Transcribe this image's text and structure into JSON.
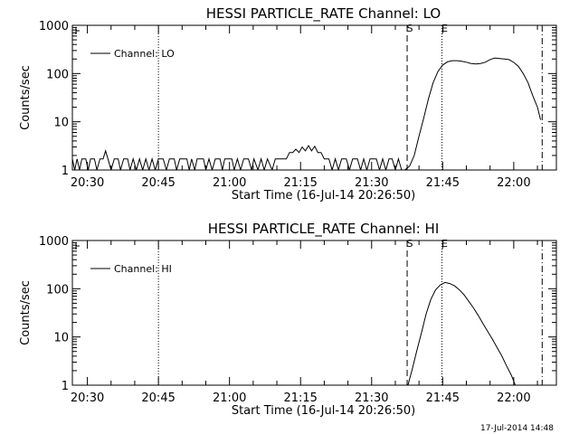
{
  "chart_data": [
    {
      "type": "line",
      "title": "HESSI PARTICLE_RATE Channel: LO",
      "xlabel": "Start Time (16-Jul-14 20:26:50)",
      "ylabel": "Counts/sec",
      "y_scale": "log",
      "ylim": [
        1,
        1000
      ],
      "y_tick_labels": [
        "1",
        "10",
        "100",
        "1000"
      ],
      "y_tick_values": [
        1,
        10,
        100,
        1000
      ],
      "xlim": [
        "20:26:50",
        "22:09:00"
      ],
      "x_tick_labels": [
        "20:30",
        "20:45",
        "21:00",
        "21:15",
        "21:30",
        "21:45",
        "22:00"
      ],
      "legend_position": "top-left",
      "series": [
        {
          "name": "Channel: LO",
          "points": [
            [
              "20:26:50",
              1.7
            ],
            [
              "20:27:20",
              1
            ],
            [
              "20:27:50",
              1.7
            ],
            [
              "20:28:20",
              1
            ],
            [
              "20:28:50",
              1.7
            ],
            [
              "20:29:40",
              1.7
            ],
            [
              "20:30:10",
              1
            ],
            [
              "20:30:40",
              1.7
            ],
            [
              "20:31:30",
              1.7
            ],
            [
              "20:32:00",
              1
            ],
            [
              "20:32:40",
              1.7
            ],
            [
              "20:33:20",
              1.7
            ],
            [
              "20:33:50",
              2.5
            ],
            [
              "20:34:20",
              1.7
            ],
            [
              "20:35:00",
              1
            ],
            [
              "20:35:40",
              1.7
            ],
            [
              "20:36:30",
              1.7
            ],
            [
              "20:37:00",
              1
            ],
            [
              "20:37:40",
              1.7
            ],
            [
              "20:38:30",
              1.7
            ],
            [
              "20:39:00",
              1
            ],
            [
              "20:39:40",
              1.7
            ],
            [
              "20:40:20",
              1
            ],
            [
              "20:41:00",
              1.7
            ],
            [
              "20:41:40",
              1
            ],
            [
              "20:42:20",
              1.7
            ],
            [
              "20:43:00",
              1
            ],
            [
              "20:43:40",
              1.7
            ],
            [
              "20:44:20",
              1
            ],
            [
              "20:45:00",
              1.7
            ],
            [
              "20:46:00",
              1.7
            ],
            [
              "20:46:40",
              1
            ],
            [
              "20:47:20",
              1.7
            ],
            [
              "20:48:20",
              1.7
            ],
            [
              "20:48:50",
              1
            ],
            [
              "20:49:30",
              1.7
            ],
            [
              "20:51:00",
              1.7
            ],
            [
              "20:51:30",
              1
            ],
            [
              "20:52:00",
              1.7
            ],
            [
              "20:52:40",
              1
            ],
            [
              "20:53:10",
              1.7
            ],
            [
              "20:54:30",
              1.7
            ],
            [
              "20:55:00",
              1
            ],
            [
              "20:55:40",
              1.7
            ],
            [
              "20:56:20",
              1
            ],
            [
              "20:57:00",
              1.7
            ],
            [
              "20:58:00",
              1.7
            ],
            [
              "20:58:30",
              1
            ],
            [
              "20:59:00",
              1.7
            ],
            [
              "21:00:30",
              1.7
            ],
            [
              "21:01:00",
              1
            ],
            [
              "21:01:40",
              1.7
            ],
            [
              "21:02:20",
              1
            ],
            [
              "21:03:00",
              1.7
            ],
            [
              "21:04:00",
              1.7
            ],
            [
              "21:04:40",
              1
            ],
            [
              "21:05:10",
              1.7
            ],
            [
              "21:06:00",
              1
            ],
            [
              "21:06:40",
              1.7
            ],
            [
              "21:07:20",
              1
            ],
            [
              "21:08:00",
              1.7
            ],
            [
              "21:09:00",
              1
            ],
            [
              "21:09:40",
              1.7
            ],
            [
              "21:12:00",
              1.7
            ],
            [
              "21:12:40",
              2.3
            ],
            [
              "21:13:20",
              2.3
            ],
            [
              "21:14:00",
              2.7
            ],
            [
              "21:14:40",
              2.3
            ],
            [
              "21:15:20",
              3.0
            ],
            [
              "21:16:00",
              2.5
            ],
            [
              "21:16:40",
              3.2
            ],
            [
              "21:17:20",
              2.5
            ],
            [
              "21:18:00",
              3.1
            ],
            [
              "21:18:40",
              2.3
            ],
            [
              "21:19:20",
              2.3
            ],
            [
              "21:20:00",
              1.7
            ],
            [
              "21:21:00",
              1.7
            ],
            [
              "21:21:40",
              1
            ],
            [
              "21:22:20",
              1.7
            ],
            [
              "21:23:00",
              1
            ],
            [
              "21:23:40",
              1.7
            ],
            [
              "21:24:40",
              1.7
            ],
            [
              "21:25:20",
              1
            ],
            [
              "21:26:00",
              1.7
            ],
            [
              "21:27:00",
              1.7
            ],
            [
              "21:27:40",
              1
            ],
            [
              "21:28:20",
              1.7
            ],
            [
              "21:29:00",
              1
            ],
            [
              "21:29:40",
              1.7
            ],
            [
              "21:31:00",
              1.7
            ],
            [
              "21:31:40",
              1
            ],
            [
              "21:32:20",
              1.7
            ],
            [
              "21:33:00",
              1
            ],
            [
              "21:33:40",
              1.7
            ],
            [
              "21:34:20",
              1.7
            ],
            [
              "21:35:00",
              1
            ],
            [
              "21:35:40",
              1.7
            ],
            [
              "21:36:20",
              1
            ],
            [
              "21:37:00",
              1
            ],
            [
              "21:38:00",
              1.2
            ],
            [
              "21:39:00",
              2.0
            ],
            [
              "21:40:00",
              5
            ],
            [
              "21:41:00",
              12
            ],
            [
              "21:42:00",
              30
            ],
            [
              "21:43:00",
              65
            ],
            [
              "21:44:00",
              110
            ],
            [
              "21:45:00",
              150
            ],
            [
              "21:46:00",
              175
            ],
            [
              "21:47:00",
              185
            ],
            [
              "21:48:00",
              185
            ],
            [
              "21:49:00",
              180
            ],
            [
              "21:50:00",
              172
            ],
            [
              "21:51:00",
              162
            ],
            [
              "21:52:00",
              158
            ],
            [
              "21:53:00",
              162
            ],
            [
              "21:54:00",
              172
            ],
            [
              "21:55:00",
              195
            ],
            [
              "21:56:00",
              210
            ],
            [
              "21:57:00",
              205
            ],
            [
              "21:58:00",
              200
            ],
            [
              "21:59:00",
              195
            ],
            [
              "22:00:00",
              170
            ],
            [
              "22:01:00",
              140
            ],
            [
              "22:02:00",
              100
            ],
            [
              "22:03:00",
              65
            ],
            [
              "22:04:00",
              35
            ],
            [
              "22:05:00",
              20
            ],
            [
              "22:05:40",
              11
            ]
          ]
        }
      ],
      "markers": [
        {
          "label": "S",
          "time": "21:37:30",
          "style": "dashed"
        },
        {
          "label": "E",
          "time": "21:44:50",
          "style": "dotted"
        },
        {
          "label": "",
          "time": "20:45:00",
          "style": "dotted"
        },
        {
          "label": "",
          "time": "22:06:00",
          "style": "dash-dot"
        }
      ]
    },
    {
      "type": "line",
      "title": "HESSI PARTICLE_RATE Channel: HI",
      "xlabel": "Start Time (16-Jul-14 20:26:50)",
      "ylabel": "Counts/sec",
      "y_scale": "log",
      "ylim": [
        1,
        1000
      ],
      "y_tick_labels": [
        "1",
        "10",
        "100",
        "1000"
      ],
      "y_tick_values": [
        1,
        10,
        100,
        1000
      ],
      "xlim": [
        "20:26:50",
        "22:09:00"
      ],
      "x_tick_labels": [
        "20:30",
        "20:45",
        "21:00",
        "21:15",
        "21:30",
        "21:45",
        "22:00"
      ],
      "legend_position": "top-left",
      "series": [
        {
          "name": "Channel: HI",
          "points": [
            [
              "21:37:40",
              1
            ],
            [
              "21:38:30",
              2
            ],
            [
              "21:39:30",
              5
            ],
            [
              "21:40:30",
              12
            ],
            [
              "21:41:30",
              30
            ],
            [
              "21:42:30",
              60
            ],
            [
              "21:43:30",
              95
            ],
            [
              "21:44:30",
              120
            ],
            [
              "21:45:30",
              135
            ],
            [
              "21:46:30",
              128
            ],
            [
              "21:47:30",
              115
            ],
            [
              "21:48:30",
              95
            ],
            [
              "21:49:30",
              75
            ],
            [
              "21:50:30",
              55
            ],
            [
              "21:51:30",
              40
            ],
            [
              "21:52:30",
              28
            ],
            [
              "21:53:30",
              19
            ],
            [
              "21:54:30",
              13
            ],
            [
              "21:55:30",
              9
            ],
            [
              "21:56:30",
              6
            ],
            [
              "21:57:30",
              4
            ],
            [
              "21:58:30",
              2.5
            ],
            [
              "21:59:30",
              1.6
            ],
            [
              "22:00:20",
              1
            ]
          ]
        }
      ],
      "markers": [
        {
          "label": "S",
          "time": "21:37:30",
          "style": "dashed"
        },
        {
          "label": "E",
          "time": "21:44:50",
          "style": "dotted"
        },
        {
          "label": "",
          "time": "20:45:00",
          "style": "dotted"
        },
        {
          "label": "",
          "time": "22:06:00",
          "style": "dash-dot"
        }
      ]
    }
  ],
  "footer": {
    "timestamp": "17-Jul-2014 14:48"
  }
}
